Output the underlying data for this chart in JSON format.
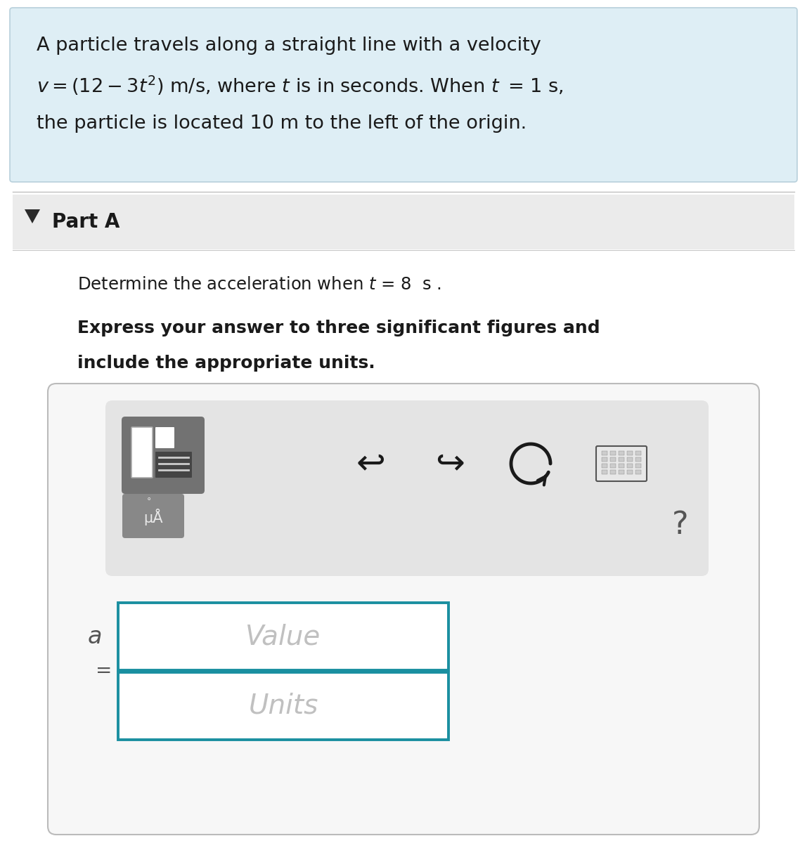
{
  "bg_color": "#ffffff",
  "header_bg": "#deeef5",
  "header_border": "#b8d0db",
  "part_bg": "#ebebeb",
  "input_box_bg": "#ffffff",
  "input_box_border": "#1a8fa0",
  "main_bg": "#f7f7f7",
  "main_border": "#bbbbbb",
  "toolbar_bg": "#e4e4e4",
  "icon_bg": "#727272",
  "mu_btn_bg": "#888888",
  "line1": "A particle travels along a straight line with a velocity",
  "line3": "the particle is located 10 m to the left of the origin.",
  "part_label": "Part A",
  "bold_line1": "Express your answer to three significant figures and",
  "bold_line2": "include the appropriate units.",
  "label_a": "a",
  "label_eq": "=",
  "value_placeholder": "Value",
  "units_placeholder": "Units",
  "text_dark": "#1a1a1a",
  "text_medium": "#444444",
  "text_light": "#aaaaaa",
  "text_icon": "#dddddd"
}
